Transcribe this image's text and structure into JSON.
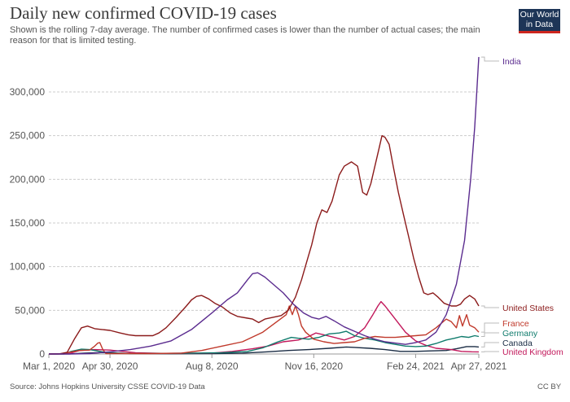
{
  "header": {
    "title": "Daily new confirmed COVID-19 cases",
    "subtitle": "Shown is the rolling 7-day average. The number of confirmed cases is lower than the number of actual cases; the main reason for that is limited testing.",
    "logo_line1": "Our World",
    "logo_line2": "in Data"
  },
  "footer": {
    "source": "Source: Johns Hopkins University CSSE COVID-19 Data",
    "license": "CC BY"
  },
  "chart_data": {
    "type": "line",
    "title": "Daily new confirmed COVID-19 cases",
    "xlabel": "",
    "ylabel": "",
    "x_unit": "days since Mar 1, 2020",
    "xlim": [
      0,
      422
    ],
    "ylim": [
      0,
      340000
    ],
    "grid": "horizontal dashed",
    "legend": "right (labels at line ends)",
    "x_ticks": [
      {
        "day": 0,
        "label": "Mar 1, 2020"
      },
      {
        "day": 60,
        "label": "Apr 30, 2020"
      },
      {
        "day": 160,
        "label": "Aug 8, 2020"
      },
      {
        "day": 260,
        "label": "Nov 16, 2020"
      },
      {
        "day": 360,
        "label": "Feb 24, 2021"
      },
      {
        "day": 422,
        "label": "Apr 27, 2021"
      }
    ],
    "y_ticks": [
      {
        "value": 0,
        "label": "0"
      },
      {
        "value": 50000,
        "label": "50,000"
      },
      {
        "value": 100000,
        "label": "100,000"
      },
      {
        "value": 150000,
        "label": "150,000"
      },
      {
        "value": 200000,
        "label": "200,000"
      },
      {
        "value": 250000,
        "label": "250,000"
      },
      {
        "value": 300000,
        "label": "300,000"
      }
    ],
    "series": [
      {
        "name": "India",
        "color": "#5b2c8f",
        "points": [
          [
            0,
            0
          ],
          [
            20,
            0
          ],
          [
            40,
            500
          ],
          [
            60,
            2500
          ],
          [
            80,
            5000
          ],
          [
            100,
            9000
          ],
          [
            120,
            15000
          ],
          [
            140,
            28000
          ],
          [
            160,
            47000
          ],
          [
            175,
            62000
          ],
          [
            185,
            70000
          ],
          [
            195,
            85000
          ],
          [
            200,
            92000
          ],
          [
            205,
            93000
          ],
          [
            212,
            88000
          ],
          [
            220,
            80000
          ],
          [
            230,
            70000
          ],
          [
            240,
            57000
          ],
          [
            250,
            47000
          ],
          [
            258,
            42000
          ],
          [
            265,
            40000
          ],
          [
            272,
            43000
          ],
          [
            280,
            38000
          ],
          [
            290,
            31000
          ],
          [
            300,
            26000
          ],
          [
            310,
            21000
          ],
          [
            320,
            17000
          ],
          [
            330,
            14000
          ],
          [
            340,
            12500
          ],
          [
            350,
            11000
          ],
          [
            360,
            13000
          ],
          [
            370,
            16000
          ],
          [
            380,
            25000
          ],
          [
            390,
            45000
          ],
          [
            400,
            80000
          ],
          [
            408,
            130000
          ],
          [
            414,
            200000
          ],
          [
            418,
            260000
          ],
          [
            420,
            300000
          ],
          [
            422,
            340000
          ]
        ]
      },
      {
        "name": "United States",
        "color": "#8b1a1a",
        "points": [
          [
            0,
            0
          ],
          [
            10,
            100
          ],
          [
            18,
            2000
          ],
          [
            25,
            17000
          ],
          [
            32,
            30000
          ],
          [
            38,
            32000
          ],
          [
            45,
            29000
          ],
          [
            52,
            28000
          ],
          [
            60,
            27000
          ],
          [
            70,
            24000
          ],
          [
            78,
            22000
          ],
          [
            85,
            21000
          ],
          [
            95,
            21000
          ],
          [
            102,
            21000
          ],
          [
            108,
            24000
          ],
          [
            115,
            30000
          ],
          [
            125,
            42000
          ],
          [
            135,
            55000
          ],
          [
            140,
            62000
          ],
          [
            145,
            66000
          ],
          [
            150,
            67000
          ],
          [
            157,
            63000
          ],
          [
            163,
            58000
          ],
          [
            170,
            54000
          ],
          [
            178,
            47000
          ],
          [
            185,
            43000
          ],
          [
            195,
            41000
          ],
          [
            200,
            40000
          ],
          [
            206,
            36000
          ],
          [
            212,
            40000
          ],
          [
            220,
            42000
          ],
          [
            228,
            44000
          ],
          [
            235,
            50000
          ],
          [
            242,
            65000
          ],
          [
            248,
            85000
          ],
          [
            253,
            105000
          ],
          [
            258,
            125000
          ],
          [
            263,
            150000
          ],
          [
            268,
            165000
          ],
          [
            273,
            162000
          ],
          [
            278,
            175000
          ],
          [
            285,
            205000
          ],
          [
            290,
            215000
          ],
          [
            297,
            220000
          ],
          [
            303,
            215000
          ],
          [
            308,
            185000
          ],
          [
            312,
            182000
          ],
          [
            316,
            195000
          ],
          [
            320,
            215000
          ],
          [
            324,
            235000
          ],
          [
            327,
            250000
          ],
          [
            330,
            248000
          ],
          [
            334,
            240000
          ],
          [
            338,
            215000
          ],
          [
            343,
            185000
          ],
          [
            348,
            160000
          ],
          [
            353,
            135000
          ],
          [
            358,
            110000
          ],
          [
            363,
            88000
          ],
          [
            368,
            70000
          ],
          [
            372,
            68000
          ],
          [
            377,
            70000
          ],
          [
            382,
            65000
          ],
          [
            388,
            58000
          ],
          [
            395,
            55000
          ],
          [
            400,
            55000
          ],
          [
            404,
            57000
          ],
          [
            408,
            63000
          ],
          [
            413,
            67000
          ],
          [
            418,
            63000
          ],
          [
            422,
            55000
          ]
        ]
      },
      {
        "name": "France",
        "color": "#c0392b",
        "points": [
          [
            0,
            0
          ],
          [
            15,
            100
          ],
          [
            20,
            2000
          ],
          [
            30,
            4000
          ],
          [
            40,
            4500
          ],
          [
            45,
            9000
          ],
          [
            48,
            12500
          ],
          [
            50,
            13000
          ],
          [
            53,
            5000
          ],
          [
            56,
            500
          ],
          [
            70,
            500
          ],
          [
            100,
            500
          ],
          [
            130,
            1000
          ],
          [
            150,
            4000
          ],
          [
            170,
            9000
          ],
          [
            190,
            14000
          ],
          [
            210,
            25000
          ],
          [
            225,
            38000
          ],
          [
            233,
            45000
          ],
          [
            236,
            55000
          ],
          [
            239,
            45000
          ],
          [
            242,
            55000
          ],
          [
            245,
            45000
          ],
          [
            248,
            32000
          ],
          [
            252,
            25000
          ],
          [
            260,
            17000
          ],
          [
            270,
            14000
          ],
          [
            280,
            12000
          ],
          [
            290,
            13000
          ],
          [
            300,
            14000
          ],
          [
            310,
            18000
          ],
          [
            320,
            20000
          ],
          [
            330,
            19000
          ],
          [
            340,
            19000
          ],
          [
            350,
            20000
          ],
          [
            360,
            21000
          ],
          [
            370,
            22000
          ],
          [
            380,
            30000
          ],
          [
            390,
            40000
          ],
          [
            395,
            37000
          ],
          [
            400,
            30000
          ],
          [
            403,
            44000
          ],
          [
            406,
            32000
          ],
          [
            410,
            45000
          ],
          [
            413,
            33000
          ],
          [
            418,
            30000
          ],
          [
            422,
            25000
          ]
        ]
      },
      {
        "name": "Germany",
        "color": "#0f7b6c",
        "points": [
          [
            0,
            0
          ],
          [
            15,
            100
          ],
          [
            22,
            3000
          ],
          [
            32,
            5500
          ],
          [
            40,
            5000
          ],
          [
            50,
            3000
          ],
          [
            60,
            1000
          ],
          [
            80,
            400
          ],
          [
            130,
            800
          ],
          [
            170,
            1500
          ],
          [
            195,
            3000
          ],
          [
            210,
            7000
          ],
          [
            225,
            14000
          ],
          [
            238,
            19000
          ],
          [
            245,
            18000
          ],
          [
            255,
            17000
          ],
          [
            265,
            19000
          ],
          [
            275,
            23000
          ],
          [
            285,
            24000
          ],
          [
            292,
            26000
          ],
          [
            300,
            21000
          ],
          [
            310,
            18000
          ],
          [
            320,
            16000
          ],
          [
            330,
            13000
          ],
          [
            340,
            11000
          ],
          [
            350,
            9000
          ],
          [
            360,
            8500
          ],
          [
            370,
            9000
          ],
          [
            380,
            12000
          ],
          [
            390,
            16000
          ],
          [
            398,
            18000
          ],
          [
            405,
            20000
          ],
          [
            412,
            19000
          ],
          [
            418,
            21000
          ],
          [
            422,
            20000
          ]
        ]
      },
      {
        "name": "Canada",
        "color": "#1a2c44",
        "points": [
          [
            0,
            0
          ],
          [
            20,
            100
          ],
          [
            35,
            1000
          ],
          [
            50,
            1600
          ],
          [
            60,
            1500
          ],
          [
            80,
            600
          ],
          [
            120,
            300
          ],
          [
            160,
            400
          ],
          [
            190,
            1000
          ],
          [
            215,
            2500
          ],
          [
            235,
            4000
          ],
          [
            255,
            5000
          ],
          [
            275,
            6500
          ],
          [
            292,
            8000
          ],
          [
            300,
            7500
          ],
          [
            315,
            6500
          ],
          [
            330,
            5000
          ],
          [
            345,
            3000
          ],
          [
            360,
            3000
          ],
          [
            375,
            3500
          ],
          [
            390,
            4000
          ],
          [
            400,
            6000
          ],
          [
            410,
            8500
          ],
          [
            418,
            8500
          ],
          [
            422,
            8000
          ]
        ]
      },
      {
        "name": "United Kingdom",
        "color": "#c2185b",
        "points": [
          [
            0,
            0
          ],
          [
            20,
            500
          ],
          [
            30,
            4000
          ],
          [
            45,
            5000
          ],
          [
            60,
            4500
          ],
          [
            72,
            3000
          ],
          [
            85,
            1500
          ],
          [
            110,
            700
          ],
          [
            140,
            800
          ],
          [
            160,
            1000
          ],
          [
            180,
            3000
          ],
          [
            200,
            6000
          ],
          [
            215,
            9000
          ],
          [
            230,
            14000
          ],
          [
            245,
            16000
          ],
          [
            255,
            20000
          ],
          [
            262,
            24000
          ],
          [
            270,
            22000
          ],
          [
            280,
            19000
          ],
          [
            290,
            16000
          ],
          [
            300,
            20000
          ],
          [
            310,
            30000
          ],
          [
            318,
            45000
          ],
          [
            323,
            55000
          ],
          [
            326,
            60000
          ],
          [
            330,
            55000
          ],
          [
            340,
            40000
          ],
          [
            350,
            25000
          ],
          [
            360,
            15000
          ],
          [
            370,
            10000
          ],
          [
            380,
            6500
          ],
          [
            395,
            5000
          ],
          [
            405,
            3000
          ],
          [
            415,
            2500
          ],
          [
            422,
            2400
          ]
        ]
      }
    ]
  }
}
